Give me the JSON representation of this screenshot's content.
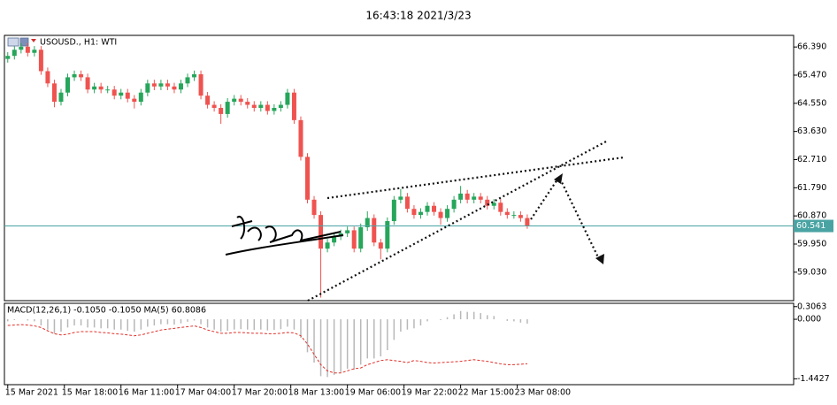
{
  "header": {
    "time": "16:43:18 2021/3/23"
  },
  "chart_data": [
    {
      "type": "candlestick",
      "title": "USOUSD., H1: WTI",
      "up_color": "#26a65b",
      "down_color": "#ef5350",
      "x": [
        0,
        2,
        4,
        6,
        8,
        10,
        12,
        14,
        16,
        18,
        20,
        22,
        24,
        26,
        28,
        30,
        32,
        34,
        36,
        38,
        40,
        42,
        44,
        46,
        48,
        50,
        52,
        54,
        56,
        58,
        60,
        62,
        64,
        66,
        68,
        70,
        72,
        74,
        76,
        78,
        80,
        82,
        84,
        86,
        88,
        90,
        92,
        94,
        96,
        98,
        100,
        102,
        104,
        106,
        108,
        110,
        112,
        114,
        116,
        118,
        120,
        122,
        124,
        126,
        128,
        130,
        132,
        134,
        136,
        138,
        140,
        142,
        144,
        146,
        148,
        150,
        152,
        154,
        156
      ],
      "open": [
        66.0,
        66.1,
        66.3,
        66.4,
        66.2,
        66.3,
        65.6,
        65.2,
        64.6,
        64.9,
        65.4,
        65.5,
        65.4,
        65.0,
        65.1,
        65.0,
        65.0,
        64.8,
        64.9,
        64.7,
        64.6,
        64.9,
        65.2,
        65.1,
        65.2,
        65.1,
        65.0,
        65.2,
        65.4,
        65.5,
        64.8,
        64.5,
        64.4,
        64.2,
        64.6,
        64.7,
        64.6,
        64.5,
        64.4,
        64.5,
        64.3,
        64.4,
        64.5,
        64.9,
        64.0,
        62.8,
        61.4,
        60.9,
        59.8,
        60.0,
        60.2,
        60.3,
        60.4,
        59.8,
        60.5,
        60.8,
        60.0,
        59.8,
        60.7,
        61.4,
        61.5,
        61.1,
        60.9,
        61.0,
        61.2,
        61.0,
        60.8,
        61.1,
        61.4,
        61.6,
        61.4,
        61.5,
        61.4,
        61.2,
        61.3,
        61.0,
        60.9,
        60.9,
        60.8
      ],
      "high": [
        66.22,
        66.42,
        66.52,
        66.52,
        66.42,
        66.42,
        65.72,
        65.32,
        65.02,
        65.52,
        65.62,
        65.62,
        65.52,
        65.22,
        65.22,
        65.12,
        65.12,
        65.02,
        65.02,
        64.82,
        65.02,
        65.32,
        65.32,
        65.32,
        65.32,
        65.22,
        65.32,
        65.52,
        65.62,
        65.62,
        64.92,
        64.62,
        64.52,
        64.72,
        64.82,
        64.82,
        64.72,
        64.62,
        64.62,
        64.62,
        64.52,
        64.62,
        65.02,
        65.02,
        64.12,
        62.92,
        61.52,
        61.02,
        60.12,
        60.32,
        60.42,
        60.52,
        60.52,
        60.62,
        61.02,
        60.92,
        60.12,
        60.82,
        61.52,
        61.75,
        61.62,
        61.22,
        61.12,
        61.32,
        61.32,
        61.12,
        61.22,
        61.52,
        61.85,
        61.72,
        61.62,
        61.62,
        61.52,
        61.42,
        61.42,
        61.12,
        61.02,
        61.02,
        60.92
      ],
      "low": [
        65.88,
        65.98,
        66.18,
        66.08,
        66.08,
        65.48,
        65.08,
        64.42,
        64.48,
        64.78,
        65.28,
        65.28,
        64.88,
        64.88,
        64.88,
        64.88,
        64.68,
        64.68,
        64.58,
        64.38,
        64.48,
        64.78,
        64.98,
        64.98,
        64.98,
        64.88,
        64.88,
        65.08,
        65.28,
        64.68,
        64.38,
        64.28,
        63.88,
        64.08,
        64.48,
        64.48,
        64.38,
        64.28,
        64.28,
        64.18,
        64.18,
        64.28,
        64.38,
        63.88,
        62.68,
        61.28,
        60.78,
        58.2,
        59.68,
        59.88,
        60.08,
        60.18,
        59.68,
        59.68,
        60.38,
        59.88,
        59.45,
        59.68,
        60.58,
        61.28,
        60.98,
        60.78,
        60.78,
        60.88,
        60.88,
        60.58,
        60.68,
        60.98,
        61.28,
        61.28,
        61.28,
        61.28,
        61.08,
        61.08,
        60.88,
        60.78,
        60.78,
        60.68,
        60.45
      ],
      "close": [
        66.1,
        66.3,
        66.4,
        66.2,
        66.3,
        65.6,
        65.2,
        64.6,
        64.9,
        65.4,
        65.5,
        65.4,
        65.0,
        65.1,
        65.0,
        65.0,
        64.8,
        64.9,
        64.7,
        64.6,
        64.9,
        65.2,
        65.1,
        65.2,
        65.1,
        65.0,
        65.2,
        65.4,
        65.5,
        64.8,
        64.5,
        64.4,
        64.2,
        64.6,
        64.7,
        64.6,
        64.5,
        64.4,
        64.5,
        64.3,
        64.4,
        64.5,
        64.9,
        64.0,
        62.8,
        61.4,
        60.9,
        59.8,
        60.0,
        60.2,
        60.3,
        60.4,
        59.8,
        60.5,
        60.8,
        60.0,
        59.8,
        60.7,
        61.4,
        61.5,
        61.1,
        60.9,
        61.0,
        61.2,
        61.0,
        60.8,
        61.1,
        61.4,
        61.6,
        61.4,
        61.5,
        61.4,
        61.2,
        61.3,
        61.0,
        60.9,
        60.9,
        60.8,
        60.541
      ],
      "xlim": [
        -1,
        236
      ],
      "xticks": [
        {
          "value": 0,
          "label": "15 Mar 2021"
        },
        {
          "value": 17,
          "label": "15 Mar 18:00"
        },
        {
          "value": 34,
          "label": "16 Mar 11:00"
        },
        {
          "value": 51,
          "label": "17 Mar 04:00"
        },
        {
          "value": 68,
          "label": "17 Mar 20:00"
        },
        {
          "value": 85,
          "label": "18 Mar 13:00"
        },
        {
          "value": 102,
          "label": "19 Mar 06:00"
        },
        {
          "value": 119,
          "label": "19 Mar 22:00"
        },
        {
          "value": 136,
          "label": "22 Mar 15:00"
        },
        {
          "value": 153,
          "label": "23 Mar 08:00"
        }
      ],
      "ylim": [
        58.1,
        66.77
      ],
      "yticks": [
        {
          "value": 66.39,
          "label": "66.390"
        },
        {
          "value": 65.47,
          "label": "65.470"
        },
        {
          "value": 64.55,
          "label": "64.550"
        },
        {
          "value": 63.63,
          "label": "63.630"
        },
        {
          "value": 62.71,
          "label": "62.710"
        },
        {
          "value": 61.79,
          "label": "61.790"
        },
        {
          "value": 60.87,
          "label": "60.870"
        },
        {
          "value": 59.95,
          "label": "59.950"
        },
        {
          "value": 59.03,
          "label": "59.030"
        }
      ],
      "last_price": 60.541,
      "last_price_color": "#4aa3a3"
    },
    {
      "type": "macd",
      "title": "MACD(12,26,1) -0.1050 -0.1050 MA(5) 60.8086",
      "x": [
        0,
        2,
        4,
        6,
        8,
        10,
        12,
        14,
        16,
        18,
        20,
        22,
        24,
        26,
        28,
        30,
        32,
        34,
        36,
        38,
        40,
        42,
        44,
        46,
        48,
        50,
        52,
        54,
        56,
        58,
        60,
        62,
        64,
        66,
        68,
        70,
        72,
        74,
        76,
        78,
        80,
        82,
        84,
        86,
        88,
        90,
        92,
        94,
        96,
        98,
        100,
        102,
        104,
        106,
        108,
        110,
        112,
        114,
        116,
        118,
        120,
        122,
        124,
        126,
        128,
        130,
        132,
        134,
        136,
        138,
        140,
        142,
        144,
        146,
        148,
        150,
        152,
        154,
        156
      ],
      "series": [
        {
          "kind": "histogram",
          "color": "#b8b8b8",
          "values": [
            -0.05,
            -0.02,
            0.0,
            -0.03,
            -0.05,
            -0.15,
            -0.25,
            -0.35,
            -0.3,
            -0.2,
            -0.15,
            -0.15,
            -0.2,
            -0.2,
            -0.22,
            -0.22,
            -0.25,
            -0.25,
            -0.28,
            -0.3,
            -0.25,
            -0.18,
            -0.15,
            -0.12,
            -0.12,
            -0.13,
            -0.1,
            -0.06,
            -0.03,
            -0.12,
            -0.2,
            -0.25,
            -0.3,
            -0.28,
            -0.25,
            -0.24,
            -0.25,
            -0.26,
            -0.25,
            -0.27,
            -0.26,
            -0.24,
            -0.18,
            -0.25,
            -0.45,
            -0.8,
            -1.05,
            -1.38,
            -1.4,
            -1.35,
            -1.28,
            -1.2,
            -1.22,
            -1.1,
            -0.95,
            -0.95,
            -0.9,
            -0.75,
            -0.5,
            -0.3,
            -0.25,
            -0.22,
            -0.15,
            -0.05,
            0.0,
            -0.02,
            0.05,
            0.12,
            0.2,
            0.18,
            0.18,
            0.15,
            0.1,
            0.08,
            0.0,
            -0.04,
            -0.05,
            -0.08,
            -0.105
          ]
        },
        {
          "kind": "line",
          "color": "#e0302a",
          "values": [
            -0.15,
            -0.14,
            -0.13,
            -0.14,
            -0.16,
            -0.2,
            -0.28,
            -0.35,
            -0.38,
            -0.36,
            -0.32,
            -0.3,
            -0.3,
            -0.3,
            -0.32,
            -0.33,
            -0.35,
            -0.36,
            -0.38,
            -0.4,
            -0.38,
            -0.34,
            -0.3,
            -0.26,
            -0.24,
            -0.22,
            -0.2,
            -0.18,
            -0.16,
            -0.2,
            -0.26,
            -0.3,
            -0.34,
            -0.34,
            -0.32,
            -0.32,
            -0.33,
            -0.34,
            -0.34,
            -0.35,
            -0.35,
            -0.34,
            -0.32,
            -0.33,
            -0.4,
            -0.6,
            -0.85,
            -1.1,
            -1.25,
            -1.3,
            -1.3,
            -1.25,
            -1.2,
            -1.18,
            -1.1,
            -1.05,
            -1.0,
            -0.98,
            -1.0,
            -1.02,
            -1.05,
            -1.0,
            -1.02,
            -1.05,
            -1.06,
            -1.05,
            -1.04,
            -1.03,
            -1.02,
            -1.0,
            -0.98,
            -1.0,
            -1.02,
            -1.05,
            -1.08,
            -1.1,
            -1.1,
            -1.09,
            -1.08
          ]
        }
      ],
      "xlim": [
        -1,
        236
      ],
      "ylim": [
        -1.585,
        0.387
      ],
      "yticks": [
        0.3063,
        {
          "value": 0,
          "label": "0.000"
        },
        -1.4427
      ]
    }
  ]
}
